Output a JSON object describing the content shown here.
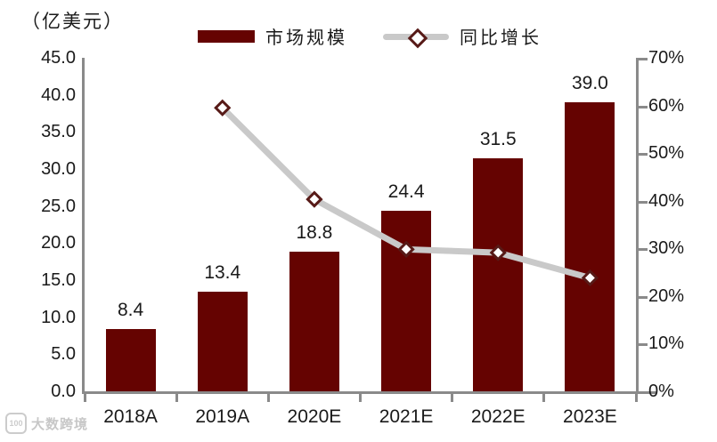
{
  "chart": {
    "unit_label": "（亿美元）",
    "watermark": "大数跨境",
    "watermark_logo": "100"
  },
  "legend": {
    "bar_label": "市场规模",
    "line_label": "同比增长"
  },
  "colors": {
    "bar": "#650301",
    "line": "#c9c9c9",
    "marker_fill": "#ffffff",
    "marker_stroke": "#571a17",
    "axis": "#8a8a8a",
    "text": "#1a1a1a"
  },
  "chart_data": {
    "type": "bar+line combo",
    "title": "",
    "categories": [
      "2018A",
      "2019A",
      "2020E",
      "2021E",
      "2022E",
      "2023E"
    ],
    "series": [
      {
        "name": "市场规模",
        "type": "bar",
        "axis": "left",
        "values": [
          8.4,
          13.4,
          18.8,
          24.4,
          31.5,
          39.0
        ],
        "labels": [
          "8.4",
          "13.4",
          "18.8",
          "24.4",
          "31.5",
          "39.0"
        ],
        "unit": "亿美元"
      },
      {
        "name": "同比增长",
        "type": "line",
        "axis": "right",
        "values": [
          null,
          59.5,
          40.3,
          29.8,
          29.1,
          23.8
        ],
        "unit": "%"
      }
    ],
    "left_axis": {
      "min": 0,
      "max": 45,
      "tick_labels": [
        "45.0",
        "40.0",
        "35.0",
        "30.0",
        "25.0",
        "20.0",
        "15.0",
        "10.0",
        "5.0",
        "0.0"
      ]
    },
    "right_axis": {
      "min": 0,
      "max": 70,
      "tick_labels": [
        "70%",
        "60%",
        "50%",
        "40%",
        "30%",
        "20%",
        "10%",
        "0%"
      ]
    },
    "legend_position": "top",
    "grid": false
  }
}
